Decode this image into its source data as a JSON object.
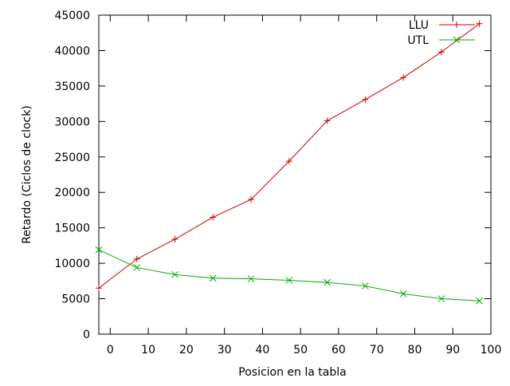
{
  "chart_data": {
    "type": "line",
    "xlabel": "Posicion en la tabla",
    "ylabel": "Retardo (Ciclos de clock)",
    "xlim": [
      -3,
      100
    ],
    "ylim": [
      0,
      45000
    ],
    "x_ticks": [
      0,
      10,
      20,
      30,
      40,
      50,
      60,
      70,
      80,
      90,
      100
    ],
    "y_ticks": [
      0,
      5000,
      10000,
      15000,
      20000,
      25000,
      30000,
      35000,
      40000,
      45000
    ],
    "x_tick_labels": [
      "0",
      "10",
      "20",
      "30",
      "40",
      "50",
      "60",
      "70",
      "80",
      "90",
      "100"
    ],
    "y_tick_labels": [
      "0",
      "5000",
      "10000",
      "15000",
      "20000",
      "25000",
      "30000",
      "35000",
      "40000",
      "45000"
    ],
    "grid": false,
    "legend_position": "top-right",
    "x": [
      -3,
      7,
      17,
      27,
      37,
      47,
      57,
      67,
      77,
      87,
      97
    ],
    "series": [
      {
        "name": "LLU",
        "color": "#cc0000",
        "marker": "plus",
        "values": [
          6500,
          10600,
          13400,
          16500,
          19000,
          24400,
          30100,
          33100,
          36200,
          39800,
          43800
        ]
      },
      {
        "name": "UTL",
        "color": "#00aa00",
        "marker": "x",
        "values": [
          11900,
          9400,
          8400,
          7900,
          7800,
          7600,
          7300,
          6800,
          5700,
          5000,
          4700
        ]
      }
    ]
  }
}
